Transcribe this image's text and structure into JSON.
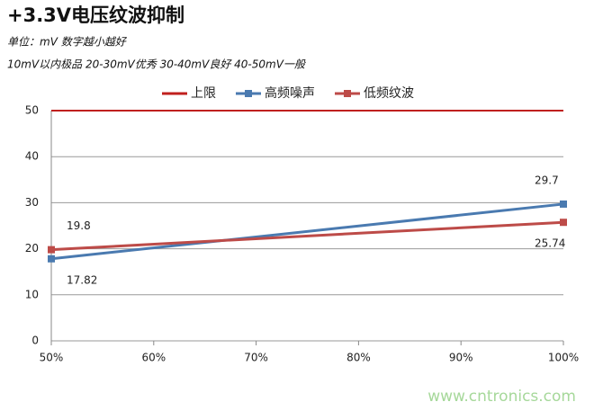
{
  "chart_data": {
    "type": "line",
    "title": "+3.3V电压纹波抑制",
    "subtitle": [
      "单位：mV  数字越小越好",
      "10mV以内极品  20-30mV优秀  30-40mV良好  40-50mV一般"
    ],
    "watermark": "www.cntronics.com",
    "x": [
      50,
      100
    ],
    "series": [
      {
        "name": "上限",
        "color": "#c0201e",
        "values": [
          50,
          50
        ],
        "markers": false,
        "data_labels": false
      },
      {
        "name": "高频噪声",
        "color": "#4a7ab0",
        "values": [
          17.82,
          29.7
        ],
        "markers": true,
        "data_labels": true
      },
      {
        "name": "低频纹波",
        "color": "#bd4b48",
        "values": [
          19.8,
          25.74
        ],
        "markers": true,
        "data_labels": true
      }
    ],
    "xlim": [
      50,
      100
    ],
    "xticks": [
      {
        "value": 50,
        "label": "50%"
      },
      {
        "value": 60,
        "label": "60%"
      },
      {
        "value": 70,
        "label": "70%"
      },
      {
        "value": 80,
        "label": "80%"
      },
      {
        "value": 90,
        "label": "90%"
      },
      {
        "value": 100,
        "label": "100%"
      }
    ],
    "ylim": [
      0,
      50
    ],
    "yticks": [
      0,
      10,
      20,
      30,
      40,
      50
    ],
    "grid": true,
    "legend": "top"
  }
}
